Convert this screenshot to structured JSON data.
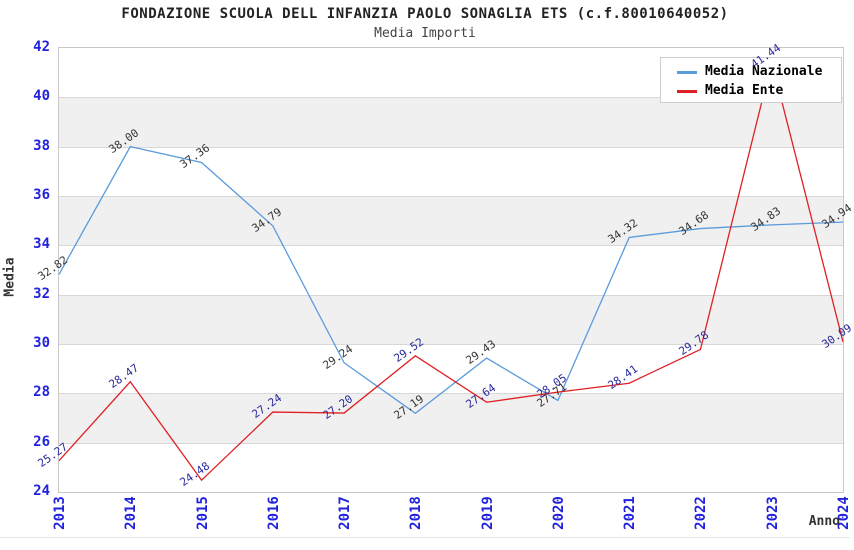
{
  "title": "FONDAZIONE SCUOLA DELL INFANZIA PAOLO SONAGLIA ETS (c.f.80010640052)",
  "subtitle": "Media Importi",
  "chart_data": {
    "type": "line",
    "x": [
      "2013",
      "2014",
      "2015",
      "2016",
      "2017",
      "2018",
      "2019",
      "2020",
      "2021",
      "2022",
      "2023",
      "2024"
    ],
    "series": [
      {
        "name": "Media Nazionale",
        "color": "#5a9bdc",
        "label_color": "#333333",
        "values": [
          32.82,
          38.0,
          37.36,
          34.79,
          29.24,
          27.19,
          29.43,
          27.71,
          34.32,
          34.68,
          34.83,
          34.94
        ]
      },
      {
        "name": "Media Ente",
        "color": "#e02025",
        "label_color": "#28289a",
        "values": [
          25.27,
          28.47,
          24.48,
          27.24,
          27.2,
          29.52,
          27.64,
          28.05,
          28.41,
          29.78,
          41.44,
          30.09
        ]
      }
    ],
    "xlabel": "Anno",
    "ylabel": "Media",
    "ylim": [
      24,
      42
    ],
    "yticks": [
      42,
      40,
      38,
      36,
      34,
      32,
      30,
      28,
      26,
      24
    ],
    "gray_bands": [
      [
        38,
        40
      ],
      [
        34,
        36
      ],
      [
        30,
        32
      ],
      [
        26,
        28
      ]
    ],
    "grid": true,
    "legend_position": "top-right"
  },
  "style": {
    "tick_color": "#2222dd",
    "band_color": "#f0f0f0",
    "grid_color": "#d8d8d8",
    "border_color": "#c8c8c8",
    "title_color": "#222222",
    "subtitle_color": "#444444",
    "axis_title_color": "#333333",
    "legend_border_color": "#cccccc"
  }
}
